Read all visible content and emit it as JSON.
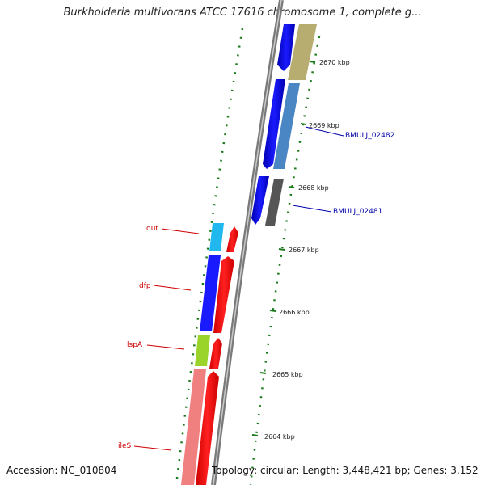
{
  "title": "Burkholderia multivorans ATCC 17616 chromosome 1, complete g...",
  "footer": {
    "accession": "Accession: NC_010804",
    "topology": "Topology: circular; Length: 3,448,421 bp; Genes: 3,152"
  },
  "colors": {
    "backbone": "#8a8a8a",
    "forward_cds": "#ff0000",
    "reverse_cds": "#0000ee",
    "tick_green": "#1a7a1a",
    "label_red": "#cc0000",
    "label_blue": "#0000aa"
  },
  "ticks": [
    "2670 kbp",
    "2669 kbp",
    "2668 kbp",
    "2667 kbp",
    "2666 kbp",
    "2665 kbp",
    "2664 kbp"
  ],
  "gene_labels": [
    {
      "name": "BMULJ_02482",
      "color": "blue"
    },
    {
      "name": "BMULJ_02481",
      "color": "blue"
    },
    {
      "name": "dut",
      "color": "red"
    },
    {
      "name": "dfp",
      "color": "red"
    },
    {
      "name": "lspA",
      "color": "red"
    },
    {
      "name": "ileS",
      "color": "red"
    }
  ]
}
